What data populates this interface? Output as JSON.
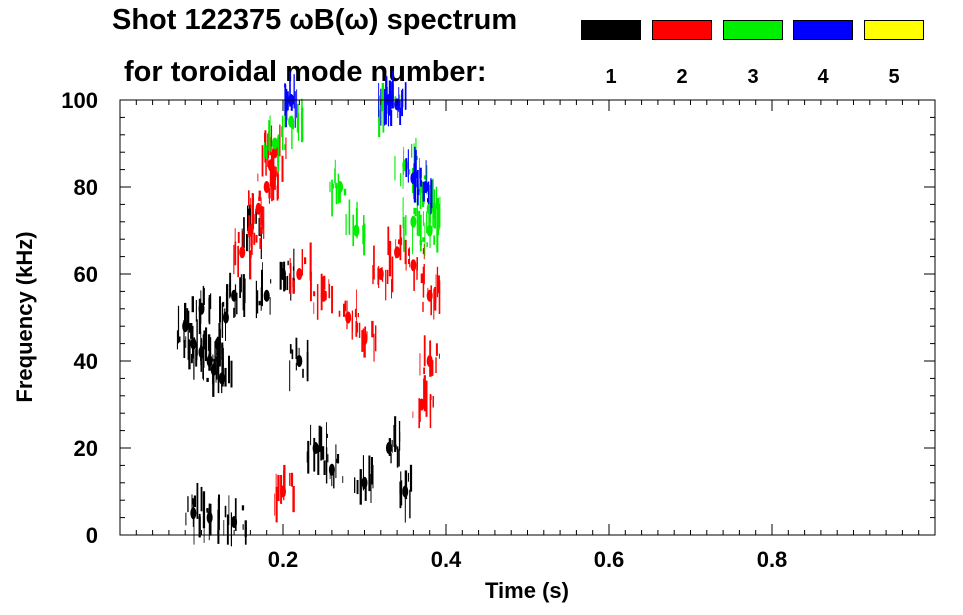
{
  "header": {
    "title_line1": "Shot 122375 ωB(ω) spectrum",
    "title_line2": "for toroidal mode number:"
  },
  "legend": [
    {
      "label": "1",
      "color": "#000000"
    },
    {
      "label": "2",
      "color": "#ff0000"
    },
    {
      "label": "3",
      "color": "#00ee00"
    },
    {
      "label": "4",
      "color": "#0000ff"
    },
    {
      "label": "5",
      "color": "#ffff00"
    }
  ],
  "chart_data": {
    "type": "heatmap",
    "title": "Shot 122375 ωB(ω) spectrum for toroidal mode number",
    "xlabel": "Time (s)",
    "ylabel": "Frequency (kHz)",
    "xlim": [
      0.0,
      1.0
    ],
    "ylim": [
      0,
      100
    ],
    "x_ticks": [
      0.2,
      0.4,
      0.6,
      0.8
    ],
    "x_tick_labels": [
      "0.2",
      "0.4",
      "0.6",
      "0.8"
    ],
    "y_ticks": [
      0,
      20,
      40,
      60,
      80,
      100
    ],
    "y_tick_labels": [
      "0",
      "20",
      "40",
      "60",
      "80",
      "100"
    ],
    "series": [
      {
        "name": "n=1",
        "color": "#000000",
        "points": [
          [
            0.08,
            48
          ],
          [
            0.09,
            44
          ],
          [
            0.1,
            42
          ],
          [
            0.11,
            40
          ],
          [
            0.12,
            44
          ],
          [
            0.13,
            50
          ],
          [
            0.14,
            55
          ],
          [
            0.1,
            52
          ],
          [
            0.115,
            38
          ],
          [
            0.125,
            36
          ],
          [
            0.16,
            70
          ],
          [
            0.18,
            55
          ],
          [
            0.2,
            60
          ],
          [
            0.22,
            40
          ],
          [
            0.24,
            20
          ],
          [
            0.26,
            15
          ],
          [
            0.3,
            12
          ],
          [
            0.33,
            20
          ],
          [
            0.35,
            10
          ],
          [
            0.09,
            5
          ],
          [
            0.11,
            4
          ],
          [
            0.14,
            3
          ]
        ]
      },
      {
        "name": "n=2",
        "color": "#ff0000",
        "points": [
          [
            0.15,
            65
          ],
          [
            0.16,
            70
          ],
          [
            0.17,
            75
          ],
          [
            0.18,
            80
          ],
          [
            0.185,
            85
          ],
          [
            0.19,
            88
          ],
          [
            0.22,
            60
          ],
          [
            0.25,
            55
          ],
          [
            0.28,
            50
          ],
          [
            0.3,
            45
          ],
          [
            0.32,
            60
          ],
          [
            0.34,
            65
          ],
          [
            0.36,
            62
          ],
          [
            0.38,
            55
          ],
          [
            0.38,
            40
          ],
          [
            0.37,
            30
          ],
          [
            0.2,
            10
          ]
        ]
      },
      {
        "name": "n=3",
        "color": "#00ee00",
        "points": [
          [
            0.19,
            90
          ],
          [
            0.21,
            95
          ],
          [
            0.27,
            80
          ],
          [
            0.29,
            70
          ],
          [
            0.33,
            98
          ],
          [
            0.35,
            85
          ],
          [
            0.37,
            80
          ],
          [
            0.38,
            75
          ],
          [
            0.38,
            70
          ],
          [
            0.36,
            72
          ]
        ]
      },
      {
        "name": "n=4",
        "color": "#0000ff",
        "points": [
          [
            0.21,
            100
          ],
          [
            0.33,
            100
          ],
          [
            0.34,
            99
          ],
          [
            0.36,
            82
          ],
          [
            0.375,
            80
          ]
        ]
      },
      {
        "name": "n=5",
        "color": "#ffff00",
        "points": []
      }
    ]
  }
}
